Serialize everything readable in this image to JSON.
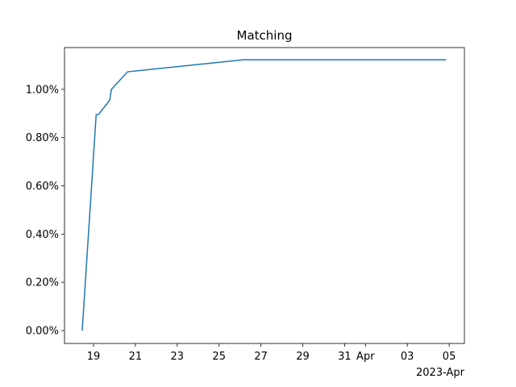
{
  "chart_data": {
    "type": "line",
    "title": "Matching",
    "x_offset_label": "2023-Apr",
    "x": [
      "2023-03-18T11:00",
      "2023-03-19T03:00",
      "2023-03-19T05:30",
      "2023-03-19T18:30",
      "2023-03-19T20:30",
      "2023-03-20T15:00",
      "2023-03-26T04:00",
      "2023-04-04T20:30"
    ],
    "series": [
      {
        "color": "#1f77b4",
        "values": [
          0,
          0.895,
          0.895,
          0.955,
          1.0,
          1.073,
          1.123,
          1.123
        ]
      }
    ],
    "xlim": [
      "2023-03-17T14:40",
      "2023-04-05T17:30"
    ],
    "xticks": [
      {
        "value": "2023-03-19T00:00",
        "label": "19"
      },
      {
        "value": "2023-03-21T00:00",
        "label": "21"
      },
      {
        "value": "2023-03-23T00:00",
        "label": "23"
      },
      {
        "value": "2023-03-25T00:00",
        "label": "25"
      },
      {
        "value": "2023-03-27T00:00",
        "label": "27"
      },
      {
        "value": "2023-03-29T00:00",
        "label": "29"
      },
      {
        "value": "2023-03-31T00:00",
        "label": "31"
      },
      {
        "value": "2023-04-01T00:00",
        "label": "Apr"
      },
      {
        "value": "2023-04-03T00:00",
        "label": "03"
      },
      {
        "value": "2023-04-05T00:00",
        "label": "05"
      }
    ],
    "ylim": [
      -0.0535,
      1.1735
    ],
    "yticks": [
      {
        "value": 0,
        "label": "0.00%"
      },
      {
        "value": 0.2,
        "label": "0.20%"
      },
      {
        "value": 0.4,
        "label": "0.40%"
      },
      {
        "value": 0.6,
        "label": "0.60%"
      },
      {
        "value": 0.8,
        "label": "0.80%"
      },
      {
        "value": 1.0,
        "label": "1.00%"
      }
    ],
    "grid": false
  }
}
